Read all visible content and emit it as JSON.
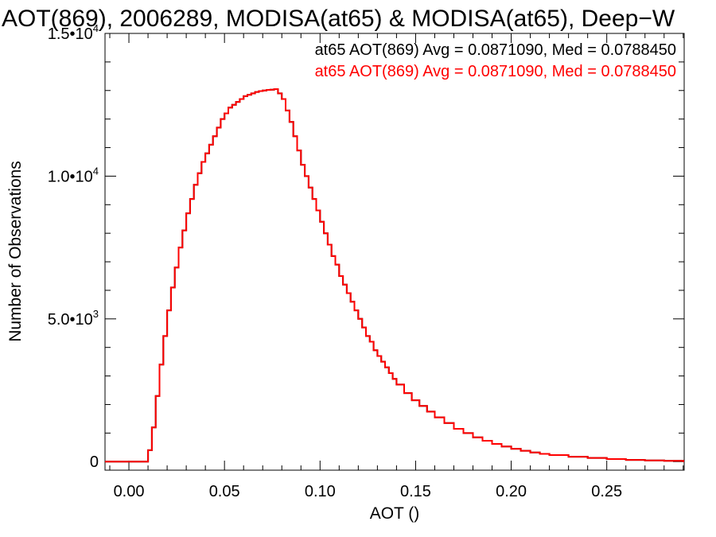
{
  "chart_data": {
    "type": "line",
    "title": "AOT(869), 2006289, MODISA(at65) & MODISA(at65), Deep−W",
    "xlabel": "AOT ()",
    "ylabel": "Number of Observations",
    "xlim": [
      -0.0125,
      0.2905
    ],
    "ylim": [
      -300,
      15000
    ],
    "x_ticks": [
      0.0,
      0.05,
      0.1,
      0.15,
      0.2,
      0.25
    ],
    "x_tick_labels": [
      "0.00",
      "0.05",
      "0.10",
      "0.15",
      "0.20",
      "0.25"
    ],
    "y_ticks": [
      0,
      5000,
      10000,
      15000
    ],
    "y_tick_labels": [
      {
        "mantissa": "0",
        "exponent": ""
      },
      {
        "mantissa": "5.0•10",
        "exponent": "3"
      },
      {
        "mantissa": "1.0•10",
        "exponent": "4"
      },
      {
        "mantissa": "1.5•10",
        "exponent": "4"
      }
    ],
    "grid": false,
    "legend_position": "top-right",
    "series": [
      {
        "name": "at65 AOT(869) Avg = 0.0871090, Med = 0.0788450",
        "color": "#000000",
        "x": [
          -0.0125,
          0.009,
          0.01,
          0.012,
          0.014,
          0.016,
          0.018,
          0.02,
          0.022,
          0.024,
          0.026,
          0.028,
          0.03,
          0.032,
          0.034,
          0.036,
          0.038,
          0.04,
          0.042,
          0.044,
          0.046,
          0.048,
          0.05,
          0.052,
          0.054,
          0.056,
          0.058,
          0.06,
          0.062,
          0.064,
          0.066,
          0.068,
          0.07,
          0.072,
          0.074,
          0.076,
          0.078,
          0.08,
          0.082,
          0.084,
          0.086,
          0.088,
          0.09,
          0.092,
          0.094,
          0.096,
          0.098,
          0.1,
          0.102,
          0.104,
          0.106,
          0.108,
          0.11,
          0.112,
          0.114,
          0.116,
          0.118,
          0.12,
          0.122,
          0.124,
          0.126,
          0.128,
          0.13,
          0.132,
          0.134,
          0.136,
          0.138,
          0.14,
          0.144,
          0.148,
          0.152,
          0.156,
          0.16,
          0.165,
          0.17,
          0.175,
          0.18,
          0.185,
          0.19,
          0.195,
          0.2,
          0.205,
          0.21,
          0.215,
          0.22,
          0.23,
          0.24,
          0.25,
          0.26,
          0.27,
          0.28,
          0.29
        ],
        "y": [
          0,
          0,
          400,
          1200,
          2300,
          3400,
          4400,
          5300,
          6100,
          6800,
          7500,
          8100,
          8700,
          9200,
          9700,
          10100,
          10500,
          10800,
          11100,
          11400,
          11700,
          12000,
          12200,
          12400,
          12500,
          12600,
          12700,
          12800,
          12850,
          12900,
          12950,
          12980,
          13000,
          13020,
          13030,
          13050,
          12900,
          12700,
          12300,
          11900,
          11400,
          10900,
          10400,
          10000,
          9600,
          9200,
          8800,
          8400,
          8000,
          7600,
          7200,
          6900,
          6500,
          6200,
          5900,
          5600,
          5300,
          5000,
          4700,
          4400,
          4200,
          3900,
          3700,
          3500,
          3300,
          3100,
          2900,
          2700,
          2400,
          2150,
          1950,
          1750,
          1550,
          1350,
          1150,
          1000,
          850,
          730,
          620,
          530,
          450,
          380,
          320,
          270,
          230,
          170,
          130,
          90,
          60,
          40,
          25,
          15
        ]
      },
      {
        "name": "at65 AOT(869) Avg = 0.0871090, Med = 0.0788450",
        "color": "#ff0000",
        "x": [
          -0.0125,
          0.009,
          0.01,
          0.012,
          0.014,
          0.016,
          0.018,
          0.02,
          0.022,
          0.024,
          0.026,
          0.028,
          0.03,
          0.032,
          0.034,
          0.036,
          0.038,
          0.04,
          0.042,
          0.044,
          0.046,
          0.048,
          0.05,
          0.052,
          0.054,
          0.056,
          0.058,
          0.06,
          0.062,
          0.064,
          0.066,
          0.068,
          0.07,
          0.072,
          0.074,
          0.076,
          0.078,
          0.08,
          0.082,
          0.084,
          0.086,
          0.088,
          0.09,
          0.092,
          0.094,
          0.096,
          0.098,
          0.1,
          0.102,
          0.104,
          0.106,
          0.108,
          0.11,
          0.112,
          0.114,
          0.116,
          0.118,
          0.12,
          0.122,
          0.124,
          0.126,
          0.128,
          0.13,
          0.132,
          0.134,
          0.136,
          0.138,
          0.14,
          0.144,
          0.148,
          0.152,
          0.156,
          0.16,
          0.165,
          0.17,
          0.175,
          0.18,
          0.185,
          0.19,
          0.195,
          0.2,
          0.205,
          0.21,
          0.215,
          0.22,
          0.23,
          0.24,
          0.25,
          0.26,
          0.27,
          0.28,
          0.29
        ],
        "y": [
          0,
          0,
          400,
          1200,
          2300,
          3400,
          4400,
          5300,
          6100,
          6800,
          7500,
          8100,
          8700,
          9200,
          9700,
          10100,
          10500,
          10800,
          11100,
          11400,
          11700,
          12000,
          12200,
          12400,
          12500,
          12600,
          12700,
          12800,
          12850,
          12900,
          12950,
          12980,
          13000,
          13020,
          13030,
          13050,
          12900,
          12700,
          12300,
          11900,
          11400,
          10900,
          10400,
          10000,
          9600,
          9200,
          8800,
          8400,
          8000,
          7600,
          7200,
          6900,
          6500,
          6200,
          5900,
          5600,
          5300,
          5000,
          4700,
          4400,
          4200,
          3900,
          3700,
          3500,
          3300,
          3100,
          2900,
          2700,
          2400,
          2150,
          1950,
          1750,
          1550,
          1350,
          1150,
          1000,
          850,
          730,
          620,
          530,
          450,
          380,
          320,
          270,
          230,
          170,
          130,
          90,
          60,
          40,
          25,
          15
        ]
      }
    ]
  }
}
